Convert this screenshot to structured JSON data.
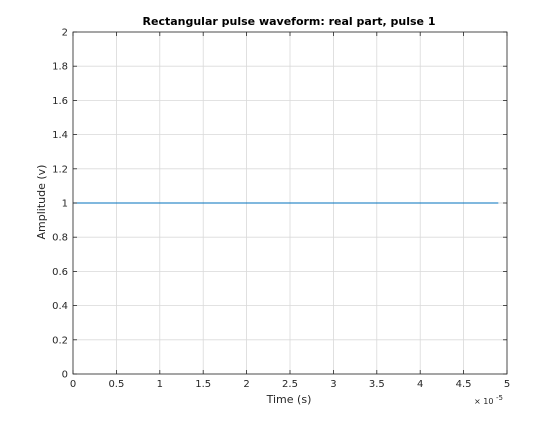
{
  "chart_data": {
    "type": "line",
    "title": "Rectangular pulse waveform: real part, pulse 1",
    "xlabel": "Time (s)",
    "ylabel": "Amplitude (v)",
    "x_exponent_label": "× 10",
    "x_exponent_power": "-5",
    "xlim": [
      0,
      5
    ],
    "ylim": [
      0,
      2
    ],
    "x_ticks": [
      0,
      0.5,
      1,
      1.5,
      2,
      2.5,
      3,
      3.5,
      4,
      4.5,
      5
    ],
    "x_tick_labels": [
      "0",
      "0.5",
      "1",
      "1.5",
      "2",
      "2.5",
      "3",
      "3.5",
      "4",
      "4.5",
      "5"
    ],
    "y_ticks": [
      0,
      0.2,
      0.4,
      0.6,
      0.8,
      1,
      1.2,
      1.4,
      1.6,
      1.8,
      2
    ],
    "y_tick_labels": [
      "0",
      "0.2",
      "0.4",
      "0.6",
      "0.8",
      "1",
      "1.2",
      "1.4",
      "1.6",
      "1.8",
      "2"
    ],
    "grid": true,
    "series": [
      {
        "x": [
          0,
          4.9
        ],
        "y": [
          1,
          1
        ],
        "color": "#0072bd"
      }
    ],
    "colors": {
      "axis": "#262626",
      "grid": "#d9d9d9",
      "background": "#ffffff"
    }
  }
}
